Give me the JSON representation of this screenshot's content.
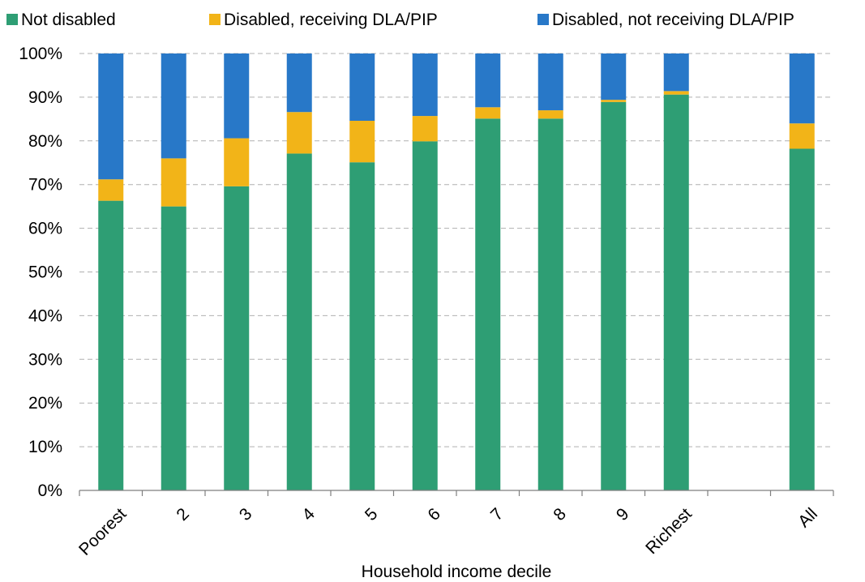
{
  "chart_data": {
    "type": "bar",
    "stacked": true,
    "categories": [
      "Poorest",
      "2",
      "3",
      "4",
      "5",
      "6",
      "7",
      "8",
      "9",
      "Richest",
      "",
      "All"
    ],
    "series": [
      {
        "name": "Not disabled",
        "color": "#2E9E74",
        "values": [
          66.3,
          65.0,
          69.6,
          77.1,
          75.1,
          79.9,
          85.1,
          85.1,
          88.9,
          90.6,
          null,
          78.2
        ]
      },
      {
        "name": "Disabled, receiving DLA/PIP",
        "color": "#F2B418",
        "values": [
          4.9,
          11.0,
          11.0,
          9.5,
          9.5,
          5.8,
          2.6,
          1.9,
          0.5,
          0.8,
          null,
          5.8
        ]
      },
      {
        "name": "Disabled, not receiving DLA/PIP",
        "color": "#2878C8",
        "values": [
          28.8,
          24.0,
          19.4,
          13.4,
          15.4,
          14.3,
          12.3,
          13.0,
          10.6,
          8.6,
          null,
          16.0
        ]
      }
    ],
    "xlabel": "Household income decile",
    "ylabel": "",
    "ylim": [
      0,
      100
    ],
    "yticks": [
      "0%",
      "10%",
      "20%",
      "30%",
      "40%",
      "50%",
      "60%",
      "70%",
      "80%",
      "90%",
      "100%"
    ],
    "grid": true,
    "legend": "top"
  }
}
